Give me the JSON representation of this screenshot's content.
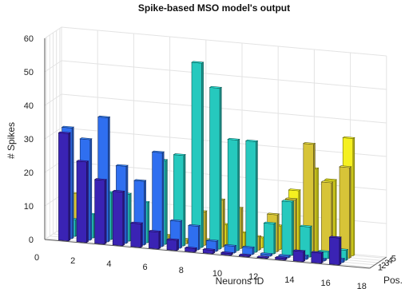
{
  "chart_data": {
    "type": "bar3d",
    "title": "Spike-based MSO model's output",
    "xlabel": "Neurons ID",
    "ylabel": "# Spikes",
    "zlabel": "Pos.",
    "xlim": [
      0,
      18
    ],
    "ylim": [
      0,
      60
    ],
    "x_ticks": [
      0,
      2,
      4,
      6,
      8,
      10,
      12,
      14,
      16,
      18
    ],
    "y_ticks": [
      0,
      10,
      20,
      30,
      40,
      50,
      60
    ],
    "z_ticks": [
      1,
      2,
      3,
      4,
      5
    ],
    "categories": [
      1,
      2,
      3,
      4,
      5,
      6,
      7,
      8,
      9,
      10,
      11,
      12,
      13,
      14,
      15,
      16
    ],
    "grid": true,
    "series": [
      {
        "pos": 1,
        "color": "#3a23b4",
        "values": [
          32,
          24,
          19,
          16,
          7,
          5,
          3,
          1,
          1,
          0.5,
          0.3,
          0.2,
          0.5,
          3,
          3,
          8
        ]
      },
      {
        "pos": 2,
        "color": "#2f6ff0",
        "values": [
          33,
          30,
          37,
          23,
          19,
          28,
          8,
          7,
          3,
          2,
          2,
          0.5,
          0.5,
          1,
          0.5,
          1
        ]
      },
      {
        "pos": 3,
        "color": "#26c9be",
        "values": [
          5,
          7,
          14,
          14,
          12,
          25,
          27,
          55,
          48,
          33,
          33,
          9,
          16,
          9,
          2,
          3
        ]
      },
      {
        "pos": 4,
        "color": "#d7c438",
        "values": [
          12,
          1,
          1,
          1,
          1,
          2,
          1,
          10,
          14,
          12,
          4,
          11,
          16,
          33,
          22,
          27
        ]
      },
      {
        "pos": 5,
        "color": "#f5f020",
        "values": [
          0.5,
          0.5,
          0.5,
          0.5,
          0.5,
          0.5,
          0.5,
          1,
          6,
          4,
          3,
          7,
          18,
          25,
          22,
          35
        ]
      }
    ]
  }
}
